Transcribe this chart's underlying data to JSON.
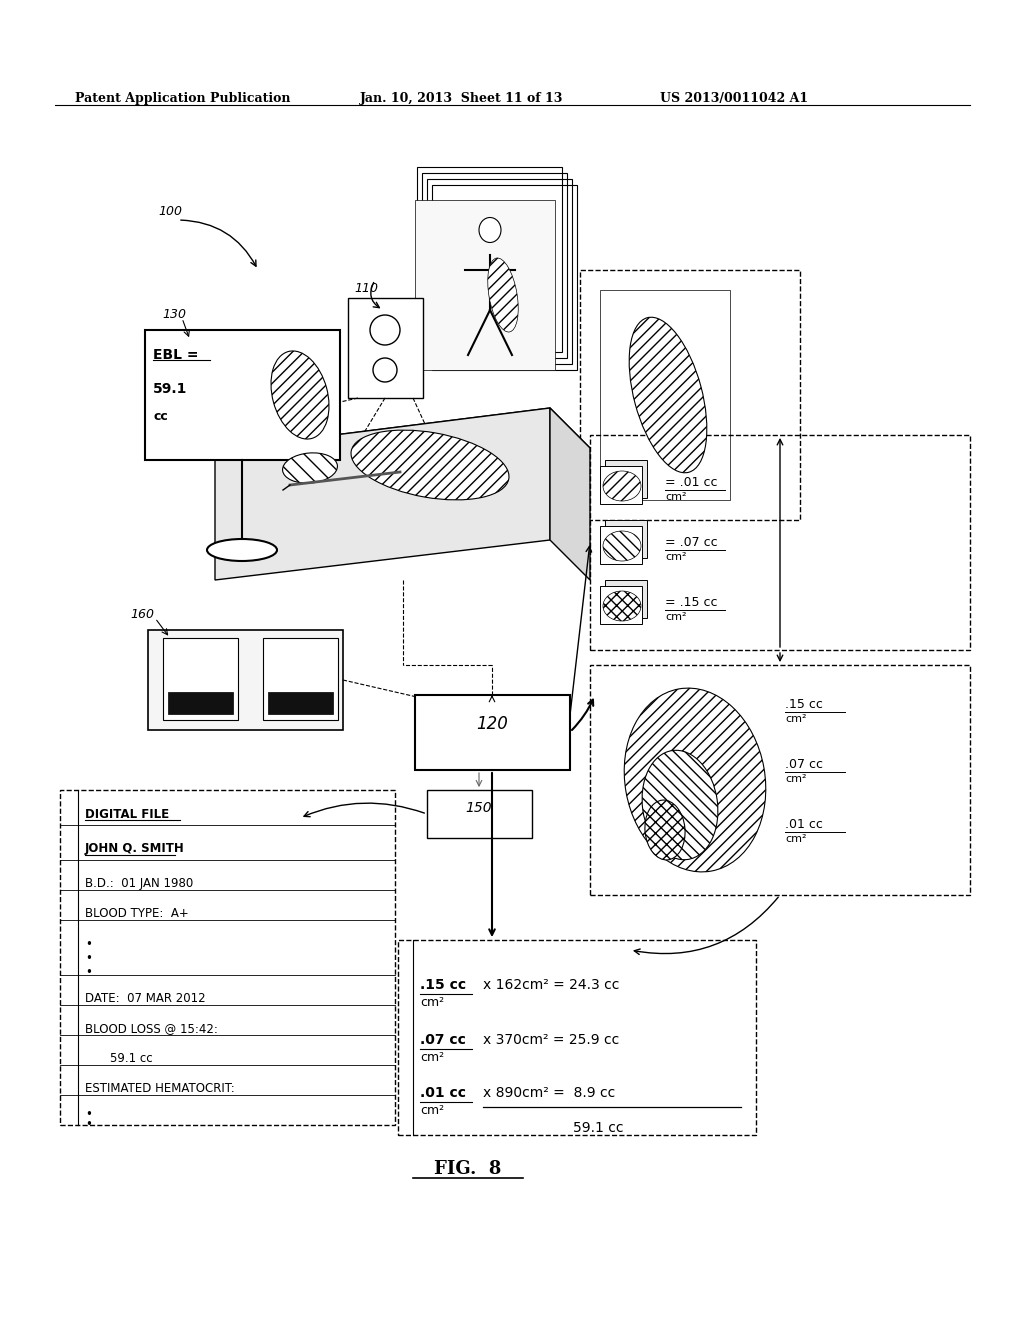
{
  "header_left": "Patent Application Publication",
  "header_mid": "Jan. 10, 2013  Sheet 11 of 13",
  "header_right": "US 2013/0011042 A1",
  "fig_label": "FIG.  8",
  "bg_color": "#ffffff",
  "line_color": "#000000"
}
